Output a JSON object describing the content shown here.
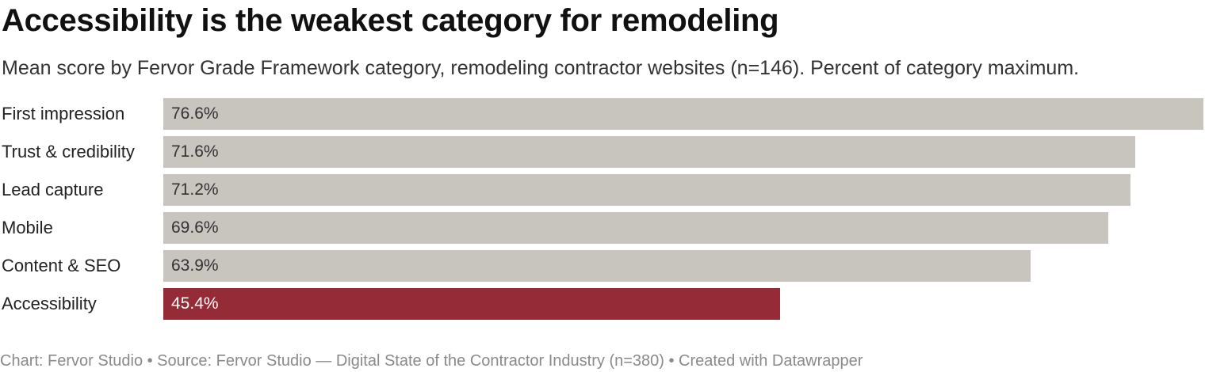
{
  "title": "Accessibility is the weakest category for remodeling",
  "subtitle": "Mean score by Fervor Grade Framework category, remodeling contractor websites (n=146). Percent of category maximum.",
  "footer": "Chart: Fervor Studio • Source: Fervor Studio — Digital State of the Contractor Industry (n=380) • Created with Datawrapper",
  "colors": {
    "default_bar": "#c8c5bf",
    "highlight_bar": "#952b37"
  },
  "chart_data": {
    "type": "bar",
    "orientation": "horizontal",
    "categories": [
      "First impression",
      "Trust & credibility",
      "Lead capture",
      "Mobile",
      "Content & SEO",
      "Accessibility"
    ],
    "values": [
      76.6,
      71.6,
      71.2,
      69.6,
      63.9,
      45.4
    ],
    "value_labels": [
      "76.6%",
      "71.6%",
      "71.2%",
      "69.6%",
      "63.9%",
      "45.4%"
    ],
    "highlight_index": 5,
    "xlim": [
      0,
      76.6
    ],
    "grid": false,
    "legend": "none"
  }
}
